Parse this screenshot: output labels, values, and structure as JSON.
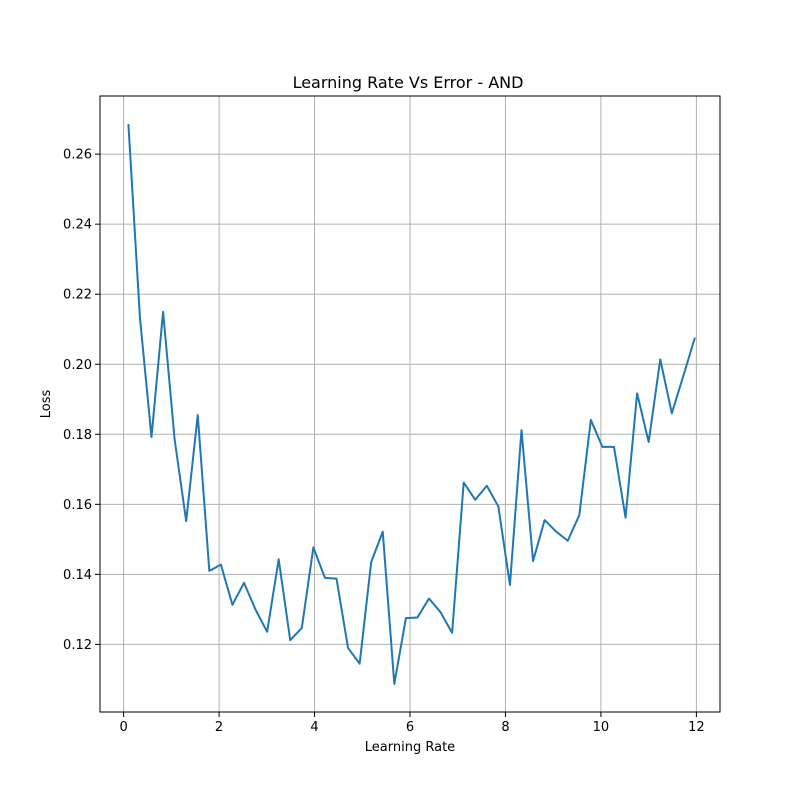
{
  "chart_data": {
    "type": "line",
    "title": "Learning Rate Vs Error - AND",
    "xlabel": "Learning Rate",
    "ylabel": "Loss",
    "xlim": [
      -0.4947,
      12.4947
    ],
    "ylim": [
      0.1007,
      0.2766
    ],
    "x_ticks": [
      0,
      2,
      4,
      6,
      8,
      10,
      12
    ],
    "y_ticks": [
      0.12,
      0.14,
      0.16,
      0.18,
      0.2,
      0.22,
      0.24,
      0.26
    ],
    "x_tick_labels": [
      "0",
      "2",
      "4",
      "6",
      "8",
      "10",
      "12"
    ],
    "y_tick_labels": [
      "0.12",
      "0.14",
      "0.16",
      "0.18",
      "0.20",
      "0.22",
      "0.24",
      "0.26"
    ],
    "grid": true,
    "series": [
      {
        "color": "#1f77b4",
        "x": [
          0.1,
          0.342,
          0.584,
          0.827,
          1.069,
          1.311,
          1.553,
          1.796,
          2.038,
          2.28,
          2.522,
          2.765,
          3.007,
          3.249,
          3.491,
          3.733,
          3.976,
          4.218,
          4.46,
          4.702,
          4.945,
          5.187,
          5.429,
          5.671,
          5.914,
          6.156,
          6.398,
          6.64,
          6.882,
          7.125,
          7.367,
          7.609,
          7.851,
          8.094,
          8.336,
          8.578,
          8.82,
          9.063,
          9.305,
          9.547,
          9.789,
          10.031,
          10.274,
          10.516,
          10.758,
          11.0,
          11.243,
          11.485,
          11.727,
          11.969
        ],
        "y": [
          0.2686,
          0.2133,
          0.1792,
          0.215,
          0.1785,
          0.1552,
          0.1855,
          0.141,
          0.1428,
          0.1313,
          0.1376,
          0.1299,
          0.1236,
          0.1443,
          0.1212,
          0.1247,
          0.1477,
          0.139,
          0.1388,
          0.119,
          0.1145,
          0.1435,
          0.1522,
          0.1087,
          0.1275,
          0.1277,
          0.1331,
          0.1292,
          0.1233,
          0.1662,
          0.1613,
          0.1653,
          0.1594,
          0.137,
          0.1812,
          0.1438,
          0.1555,
          0.1522,
          0.1496,
          0.1569,
          0.1841,
          0.1764,
          0.1764,
          0.1562,
          0.1917,
          0.1778,
          0.2014,
          0.186,
          0.1967,
          0.2076
        ]
      }
    ]
  }
}
